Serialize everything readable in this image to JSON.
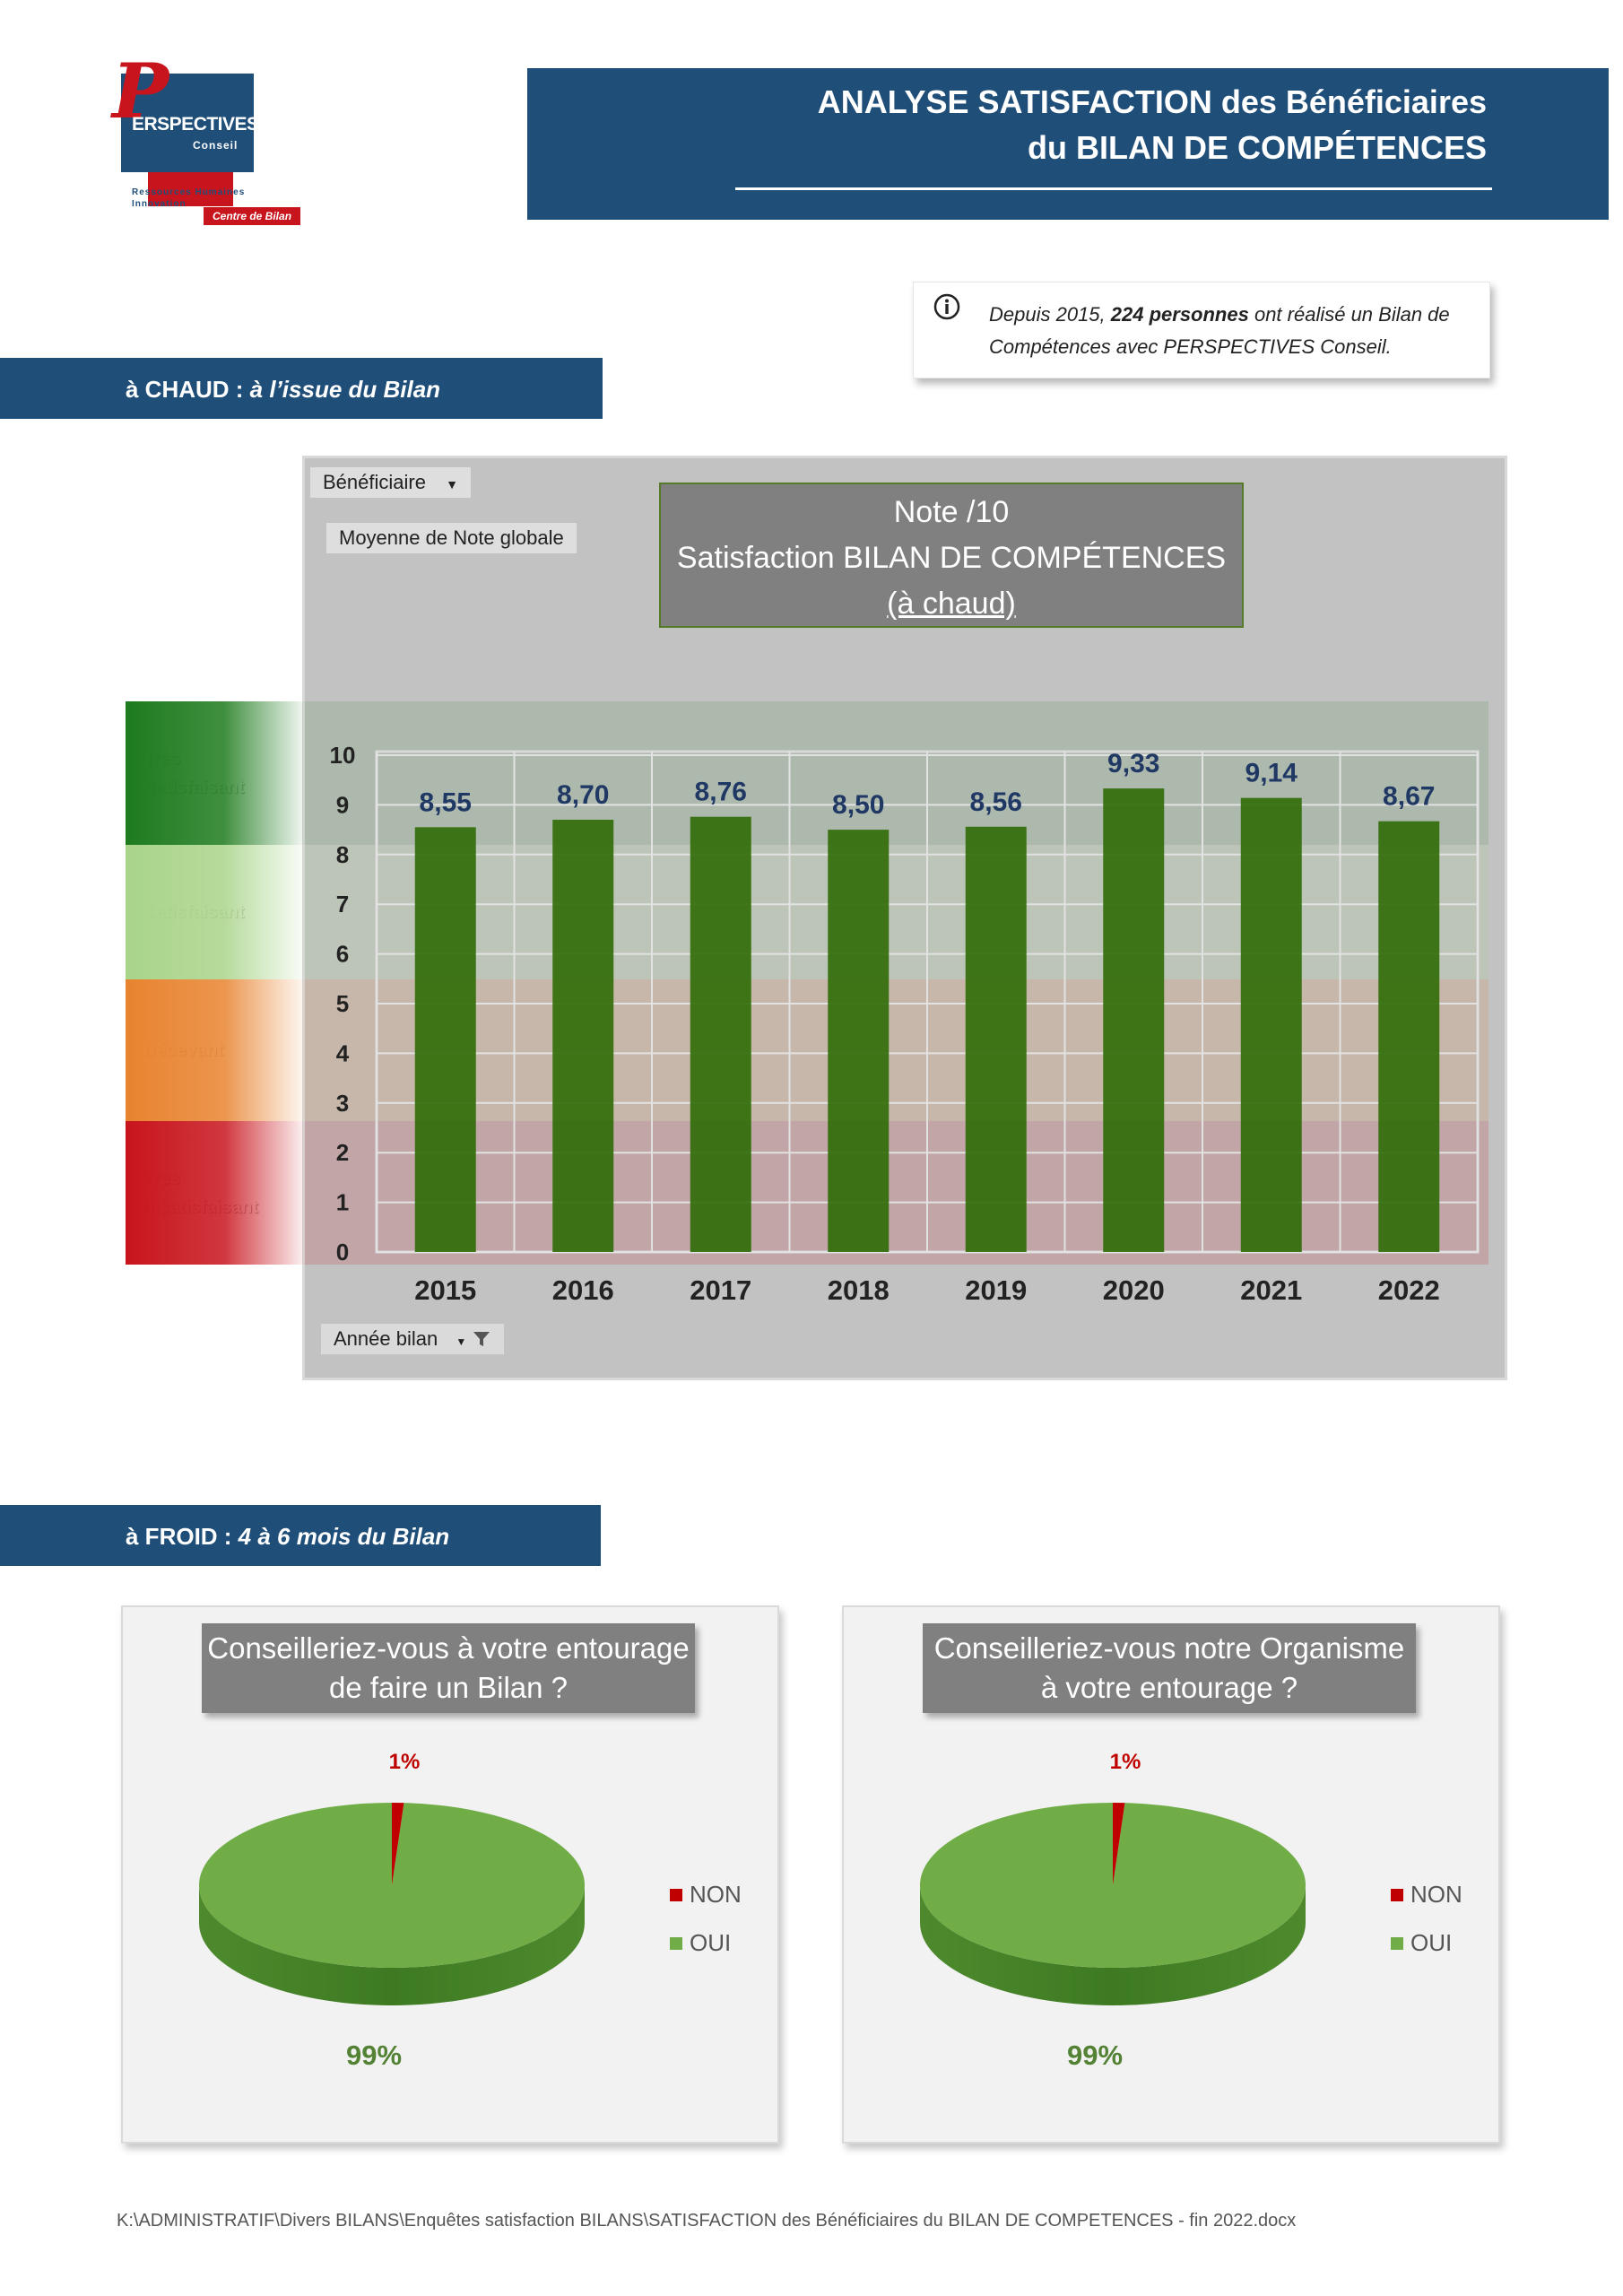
{
  "logo": {
    "initial": "P",
    "brand": "ERSPECTIVES",
    "sub": "Conseil",
    "tag1": "Ressources Humaines",
    "tag2": "Innovation",
    "badge": "Centre de Bilan"
  },
  "header": {
    "line1": "ANALYSE SATISFACTION des Bénéficiaires",
    "line2": "du BILAN DE COMPÉTENCES"
  },
  "info": {
    "icon": "info-icon",
    "pre": "Depuis 2015, ",
    "bold": "224 personnes",
    "post": " ont réalisé un Bilan de Compétences avec PERSPECTIVES Conseil."
  },
  "section_chaud": {
    "prefix": "à CHAUD : ",
    "italic": "à l’issue du Bilan"
  },
  "section_froid": {
    "prefix": "à FROID : ",
    "italic": "4 à 6 mois du Bilan"
  },
  "pivot": {
    "filter_label": "Bénéficiaire",
    "measure_label": "Moyenne de Note globale",
    "axis_field": "Année bilan"
  },
  "bands": [
    {
      "label_line1": "Très",
      "label_line2": "Satisfaisant",
      "from": 8.5,
      "to": 10,
      "color": "#1e7b1e"
    },
    {
      "label_line1": "Satisfaisant",
      "label_line2": "",
      "from": 5.7,
      "to": 8.5,
      "color": "#a9d48a"
    },
    {
      "label_line1": "Décevant",
      "label_line2": "",
      "from": 2.9,
      "to": 5.7,
      "color": "#e8832f"
    },
    {
      "label_line1": "Très",
      "label_line2": "Insatisfaisant",
      "from": 0,
      "to": 2.9,
      "color": "#c8141c"
    }
  ],
  "colors": {
    "primary_blue": "#1f4e79",
    "bar_green": "#2f6b05",
    "value_label": "#1f3864",
    "pie_oui": "#70ad47",
    "pie_non": "#c00000"
  },
  "chart_data": [
    {
      "type": "bar",
      "title_line1": "Note /10",
      "title_line2": "Satisfaction BILAN DE COMPÉTENCES",
      "title_line3": "(à chaud)",
      "categories": [
        "2015",
        "2016",
        "2017",
        "2018",
        "2019",
        "2020",
        "2021",
        "2022"
      ],
      "values": [
        8.55,
        8.7,
        8.76,
        8.5,
        8.56,
        9.33,
        9.14,
        8.67
      ],
      "value_labels": [
        "8,55",
        "8,70",
        "8,76",
        "8,50",
        "8,56",
        "9,33",
        "9,14",
        "8,67"
      ],
      "ylim": [
        0,
        10
      ],
      "yticks": [
        "0",
        "1",
        "2",
        "3",
        "4",
        "5",
        "6",
        "7",
        "8",
        "9",
        "10"
      ],
      "grid": true,
      "legend": "none"
    },
    {
      "type": "pie",
      "title_line1": "Conseilleriez-vous à votre entourage",
      "title_line2": "de faire un Bilan ?",
      "slices": [
        {
          "name": "NON",
          "value": 1,
          "label": "1%"
        },
        {
          "name": "OUI",
          "value": 99,
          "label": "99%"
        }
      ],
      "legend": "right"
    },
    {
      "type": "pie",
      "title_line1": "Conseilleriez-vous notre Organisme",
      "title_line2": "à votre entourage ?",
      "slices": [
        {
          "name": "NON",
          "value": 1,
          "label": "1%"
        },
        {
          "name": "OUI",
          "value": 99,
          "label": "99%"
        }
      ],
      "legend": "right"
    }
  ],
  "footer": "K:\\ADMINISTRATIF\\Divers BILANS\\Enquêtes satisfaction BILANS\\SATISFACTION des Bénéficiaires du BILAN DE COMPETENCES - fin 2022.docx"
}
